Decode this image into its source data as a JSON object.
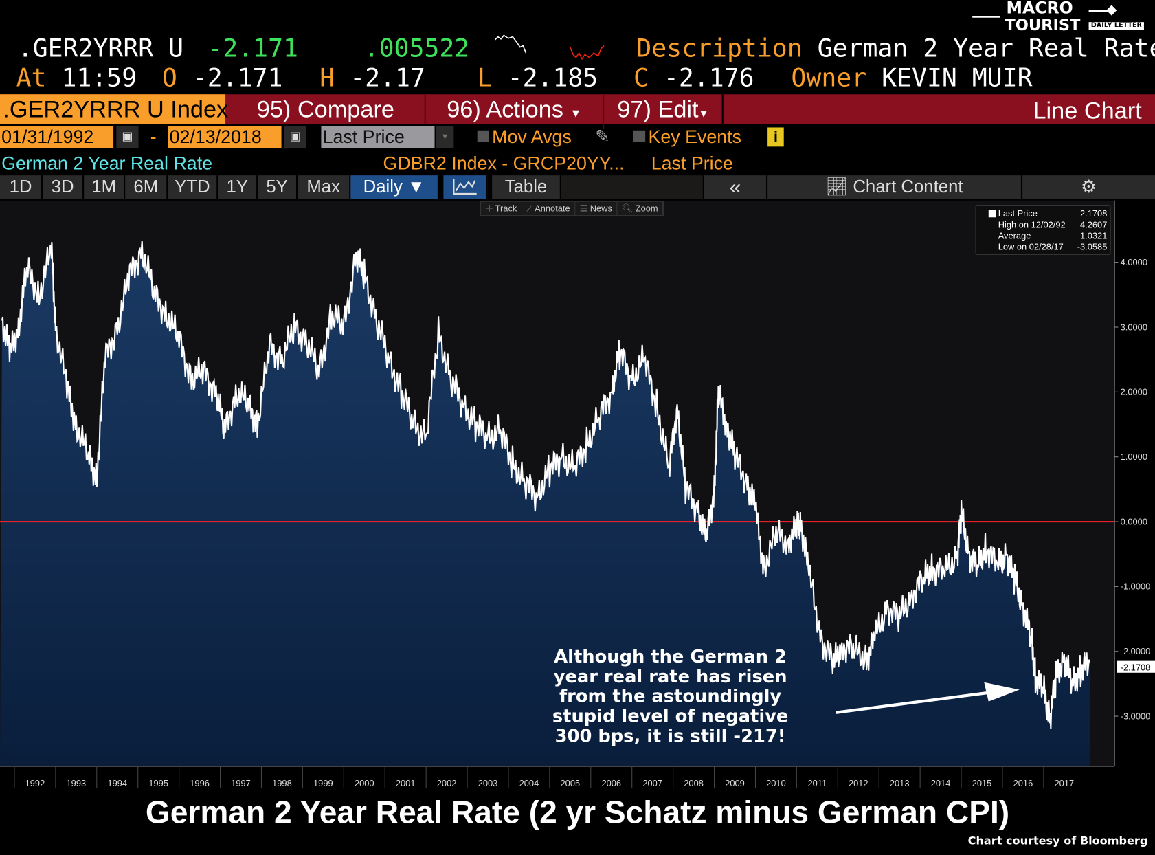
{
  "header": {
    "ticker": ".GER2YRRR U",
    "last": "-2.171",
    "change": ".005522",
    "at_label": "At",
    "time": "11:59",
    "open_label": "O",
    "open": "-2.171",
    "high_label": "H",
    "high": "-2.17",
    "low_label": "L",
    "low": "-2.185",
    "close_label": "C",
    "close": "-2.176",
    "description_label": "Description",
    "description": "German 2 Year Real Rate",
    "owner_label": "Owner",
    "owner": "KEVIN MUIR"
  },
  "logo": {
    "line1": "MACRO",
    "line2": "TOURIST",
    "line3": "DAILY LETTER"
  },
  "toolbar": {
    "security": ".GER2YRRR U Index",
    "compare": "95) Compare",
    "actions": "96) Actions",
    "edit": "97) Edit",
    "chart_type": "Line Chart"
  },
  "range": {
    "start": "01/31/1992",
    "dash": "-",
    "end": "02/13/2018",
    "field": "Last Price",
    "mov_avgs": "Mov Avgs",
    "key_events": "Key Events"
  },
  "subtitle": {
    "name": "German 2 Year Real Rate",
    "formula": "GDBR2 Index - GRCP20YY...",
    "field": "Last Price"
  },
  "periods": [
    "1D",
    "3D",
    "1M",
    "6M",
    "YTD",
    "1Y",
    "5Y",
    "Max"
  ],
  "frequency": "Daily ▼",
  "table_label": "Table",
  "chart_content": "Chart Content",
  "tools": [
    "Track",
    "Annotate",
    "News",
    "Zoom"
  ],
  "legend": {
    "last_label": "Last Price",
    "last": "-2.1708",
    "high_label": "High on 12/02/92",
    "high": "4.2607",
    "avg_label": "Average",
    "avg": "1.0321",
    "low_label": "Low on 02/28/17",
    "low": "-3.0585"
  },
  "annotation": [
    "Although the German 2",
    "year real rate has risen",
    "from the astoundingly",
    "stupid level of negative",
    "300 bps, it is still -217!"
  ],
  "footer": {
    "title": "German 2 Year Real Rate (2 yr Schatz minus German CPI)",
    "credit": "Chart courtesy of Bloomberg"
  },
  "colors": {
    "orange": "#fa9e2b",
    "red_bar": "#8a1020",
    "zero_line": "#e8202a",
    "area": "#0d2a4d",
    "green": "#3ee25a"
  },
  "chart_data": {
    "type": "area",
    "title": "German 2 Year Real Rate",
    "xlabel": "",
    "ylabel": "",
    "ylim": [
      -3.8,
      4.8
    ],
    "xlim": [
      1991.65,
      2018.5
    ],
    "yticks": [
      4,
      3,
      2,
      1,
      0,
      -1,
      -2,
      -3
    ],
    "ytick_labels": [
      "4.0000",
      "3.0000",
      "2.0000",
      "1.0000",
      "0.0000",
      "-1.0000",
      "-2.0000",
      "-3.0000"
    ],
    "xticks": [
      1992,
      1993,
      1994,
      1995,
      1996,
      1997,
      1998,
      1999,
      2000,
      2001,
      2002,
      2003,
      2004,
      2005,
      2006,
      2007,
      2008,
      2009,
      2010,
      2011,
      2012,
      2013,
      2014,
      2015,
      2016,
      2017
    ],
    "reference_line": 0,
    "last_value_label": "-2.1708",
    "x": [
      1991.7,
      1991.9,
      1992.1,
      1992.3,
      1992.6,
      1992.9,
      1993.0,
      1993.3,
      1993.5,
      1993.8,
      1994.0,
      1994.2,
      1994.5,
      1994.8,
      1995.1,
      1995.4,
      1995.7,
      1996.0,
      1996.3,
      1996.6,
      1996.9,
      1997.1,
      1997.4,
      1997.7,
      1997.9,
      1998.2,
      1998.5,
      1998.8,
      1999.1,
      1999.4,
      1999.7,
      2000.0,
      2000.3,
      2000.5,
      2000.8,
      2001.1,
      2001.4,
      2001.7,
      2002.0,
      2002.3,
      2002.6,
      2002.9,
      2003.2,
      2003.5,
      2003.8,
      2004.1,
      2004.4,
      2004.7,
      2005.0,
      2005.3,
      2005.6,
      2005.9,
      2006.2,
      2006.5,
      2006.7,
      2007.0,
      2007.3,
      2007.6,
      2007.9,
      2008.1,
      2008.3,
      2008.6,
      2008.8,
      2009.0,
      2009.1,
      2009.3,
      2009.5,
      2009.8,
      2010.0,
      2010.2,
      2010.5,
      2010.8,
      2011.0,
      2011.1,
      2011.3,
      2011.6,
      2011.9,
      2012.1,
      2012.4,
      2012.7,
      2012.9,
      2013.2,
      2013.5,
      2013.8,
      2014.1,
      2014.3,
      2014.6,
      2014.9,
      2015.0,
      2015.2,
      2015.4,
      2015.6,
      2015.9,
      2016.1,
      2016.3,
      2016.5,
      2016.7,
      2016.8,
      2017.0,
      2017.15,
      2017.3,
      2017.5,
      2017.7,
      2017.9,
      2018.12
    ],
    "y": [
      3.1,
      2.6,
      3.0,
      3.9,
      3.5,
      4.2,
      3.0,
      2.0,
      1.5,
      1.0,
      0.7,
      2.5,
      3.0,
      3.8,
      4.2,
      3.5,
      3.2,
      2.8,
      2.2,
      2.3,
      2.0,
      1.4,
      2.0,
      1.8,
      1.5,
      2.7,
      2.5,
      3.0,
      2.8,
      2.3,
      3.2,
      3.0,
      4.1,
      3.8,
      3.1,
      2.5,
      2.0,
      1.5,
      1.3,
      2.9,
      2.2,
      1.8,
      1.5,
      1.3,
      1.4,
      0.9,
      0.6,
      0.4,
      0.8,
      1.0,
      0.8,
      1.2,
      1.6,
      2.0,
      2.6,
      2.2,
      2.5,
      1.8,
      0.8,
      1.8,
      0.5,
      0.2,
      -0.3,
      0.5,
      2.0,
      1.5,
      1.0,
      0.6,
      0.2,
      -0.7,
      -0.2,
      -0.3,
      -0.1,
      0.0,
      -0.8,
      -1.8,
      -2.2,
      -1.9,
      -2.0,
      -2.1,
      -1.8,
      -1.3,
      -1.5,
      -1.1,
      -0.9,
      -0.7,
      -0.8,
      -0.5,
      0.1,
      -0.5,
      -0.7,
      -0.4,
      -0.7,
      -0.5,
      -0.9,
      -1.3,
      -1.8,
      -2.4,
      -2.6,
      -3.05,
      -2.4,
      -2.1,
      -2.5,
      -2.3,
      -2.17
    ]
  }
}
